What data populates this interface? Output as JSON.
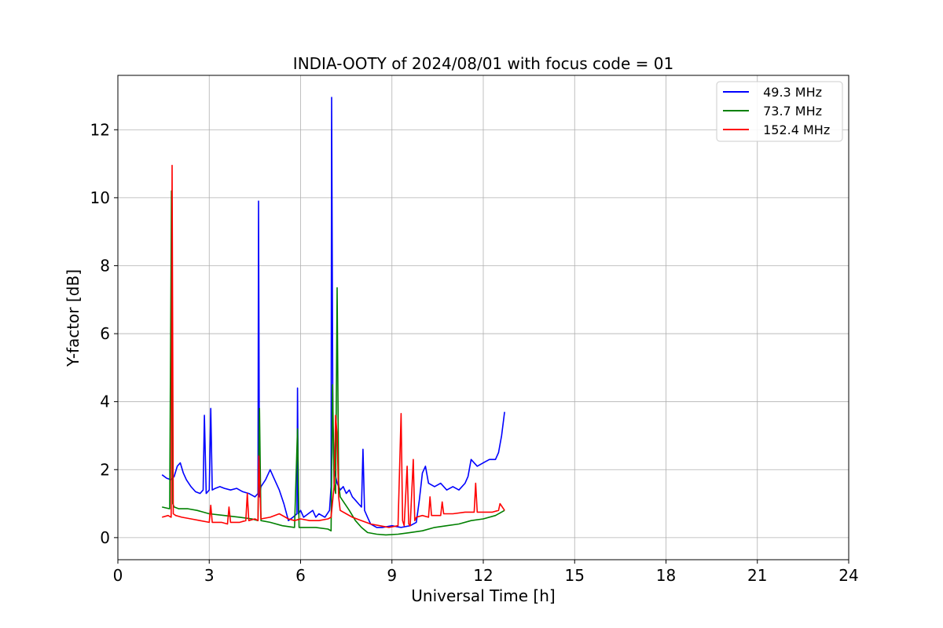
{
  "chart_data": {
    "type": "line",
    "title": "INDIA-OOTY of 2024/08/01 with focus code = 01",
    "xlabel": "Universal Time [h]",
    "ylabel": "Y-factor [dB]",
    "xlim": [
      0,
      24
    ],
    "ylim": [
      -0.65,
      13.6
    ],
    "xticks": [
      0,
      3,
      6,
      9,
      12,
      15,
      18,
      21,
      24
    ],
    "yticks": [
      0,
      2,
      4,
      6,
      8,
      10,
      12
    ],
    "xtick_labels": [
      "0",
      "3",
      "6",
      "9",
      "12",
      "15",
      "18",
      "21",
      "24"
    ],
    "ytick_labels": [
      "0",
      "2",
      "4",
      "6",
      "8",
      "10",
      "12"
    ],
    "grid": true,
    "legend_position": "top-right",
    "series": [
      {
        "name": " 49.3 MHz",
        "color": "#0000ff",
        "x": [
          1.45,
          1.6,
          1.75,
          1.85,
          1.95,
          2.05,
          2.15,
          2.25,
          2.4,
          2.55,
          2.7,
          2.8,
          2.84,
          2.9,
          3.0,
          3.05,
          3.1,
          3.2,
          3.35,
          3.5,
          3.7,
          3.9,
          4.1,
          4.3,
          4.5,
          4.6,
          4.62,
          4.65,
          4.7,
          4.85,
          5.0,
          5.1,
          5.2,
          5.3,
          5.45,
          5.6,
          5.75,
          5.88,
          5.9,
          5.93,
          6.0,
          6.1,
          6.25,
          6.4,
          6.5,
          6.6,
          6.8,
          6.95,
          7.0,
          7.02,
          7.06,
          7.1,
          7.2,
          7.3,
          7.4,
          7.5,
          7.6,
          7.7,
          7.8,
          7.9,
          8.0,
          8.05,
          8.1,
          8.2,
          8.3,
          8.5,
          8.7,
          9.0,
          9.3,
          9.6,
          9.8,
          9.9,
          10.0,
          10.1,
          10.2,
          10.4,
          10.6,
          10.8,
          11.0,
          11.2,
          11.4,
          11.5,
          11.6,
          11.8,
          12.0,
          12.2,
          12.4,
          12.5,
          12.6,
          12.7
        ],
        "values": [
          1.85,
          1.75,
          1.7,
          1.8,
          2.1,
          2.2,
          1.9,
          1.7,
          1.5,
          1.35,
          1.3,
          1.4,
          3.6,
          1.3,
          1.4,
          3.8,
          1.4,
          1.45,
          1.5,
          1.45,
          1.4,
          1.45,
          1.35,
          1.3,
          1.2,
          1.3,
          9.9,
          1.2,
          1.5,
          1.7,
          2.0,
          1.8,
          1.6,
          1.4,
          1.0,
          0.5,
          0.6,
          0.7,
          4.4,
          0.7,
          0.8,
          0.6,
          0.7,
          0.8,
          0.6,
          0.7,
          0.6,
          0.8,
          1.5,
          12.95,
          3.4,
          2.0,
          1.6,
          1.4,
          1.5,
          1.3,
          1.4,
          1.2,
          1.1,
          1.0,
          0.9,
          2.6,
          0.8,
          0.6,
          0.4,
          0.3,
          0.3,
          0.35,
          0.3,
          0.35,
          0.45,
          1.1,
          1.9,
          2.1,
          1.6,
          1.5,
          1.6,
          1.4,
          1.5,
          1.4,
          1.6,
          1.8,
          2.3,
          2.1,
          2.2,
          2.3,
          2.3,
          2.5,
          3.0,
          3.7
        ]
      },
      {
        "name": " 73.7 MHz",
        "color": "#008000",
        "x": [
          1.45,
          1.7,
          1.76,
          1.8,
          1.85,
          2.0,
          2.3,
          2.6,
          3.0,
          3.5,
          4.0,
          4.4,
          4.6,
          4.65,
          4.7,
          5.0,
          5.4,
          5.8,
          5.9,
          5.95,
          6.1,
          6.5,
          6.9,
          7.0,
          7.05,
          7.1,
          7.15,
          7.2,
          7.25,
          7.3,
          7.45,
          7.6,
          7.8,
          8.0,
          8.2,
          8.5,
          8.8,
          9.2,
          9.6,
          10.0,
          10.4,
          10.8,
          11.2,
          11.6,
          12.0,
          12.4,
          12.7
        ],
        "values": [
          0.9,
          0.85,
          10.2,
          1.0,
          0.9,
          0.85,
          0.85,
          0.8,
          0.7,
          0.65,
          0.6,
          0.55,
          0.5,
          3.8,
          0.5,
          0.45,
          0.35,
          0.3,
          3.2,
          0.3,
          0.3,
          0.3,
          0.25,
          0.2,
          4.5,
          1.6,
          1.3,
          7.35,
          1.6,
          1.2,
          1.0,
          0.8,
          0.5,
          0.3,
          0.15,
          0.1,
          0.08,
          0.1,
          0.15,
          0.2,
          0.3,
          0.35,
          0.4,
          0.5,
          0.55,
          0.65,
          0.8
        ]
      },
      {
        "name": " 152.4 MHz",
        "color": "#ff0000",
        "x": [
          1.45,
          1.65,
          1.75,
          1.78,
          1.82,
          1.9,
          2.1,
          2.4,
          2.7,
          3.0,
          3.05,
          3.1,
          3.4,
          3.6,
          3.65,
          3.7,
          4.0,
          4.2,
          4.25,
          4.3,
          4.5,
          4.6,
          4.63,
          4.7,
          5.0,
          5.3,
          5.6,
          5.8,
          6.0,
          6.3,
          6.6,
          6.9,
          7.0,
          7.1,
          7.15,
          7.2,
          7.25,
          7.3,
          7.5,
          7.7,
          8.0,
          8.3,
          8.6,
          8.9,
          9.2,
          9.3,
          9.35,
          9.4,
          9.5,
          9.55,
          9.6,
          9.7,
          9.75,
          9.8,
          10.0,
          10.2,
          10.25,
          10.3,
          10.6,
          10.65,
          10.7,
          11.0,
          11.4,
          11.7,
          11.75,
          11.8,
          12.0,
          12.3,
          12.5,
          12.55,
          12.7
        ],
        "values": [
          0.6,
          0.65,
          0.6,
          10.95,
          0.7,
          0.65,
          0.6,
          0.55,
          0.5,
          0.45,
          0.95,
          0.45,
          0.45,
          0.4,
          0.9,
          0.45,
          0.45,
          0.5,
          1.3,
          0.5,
          0.55,
          0.5,
          2.4,
          0.55,
          0.6,
          0.7,
          0.55,
          0.5,
          0.55,
          0.5,
          0.5,
          0.55,
          0.6,
          1.5,
          3.6,
          3.0,
          1.2,
          0.8,
          0.7,
          0.6,
          0.5,
          0.4,
          0.35,
          0.3,
          0.35,
          3.65,
          0.5,
          0.35,
          2.1,
          0.4,
          0.35,
          2.3,
          0.5,
          0.6,
          0.65,
          0.6,
          1.2,
          0.65,
          0.65,
          1.05,
          0.7,
          0.7,
          0.75,
          0.75,
          1.6,
          0.75,
          0.75,
          0.75,
          0.8,
          1.0,
          0.8
        ]
      }
    ]
  }
}
